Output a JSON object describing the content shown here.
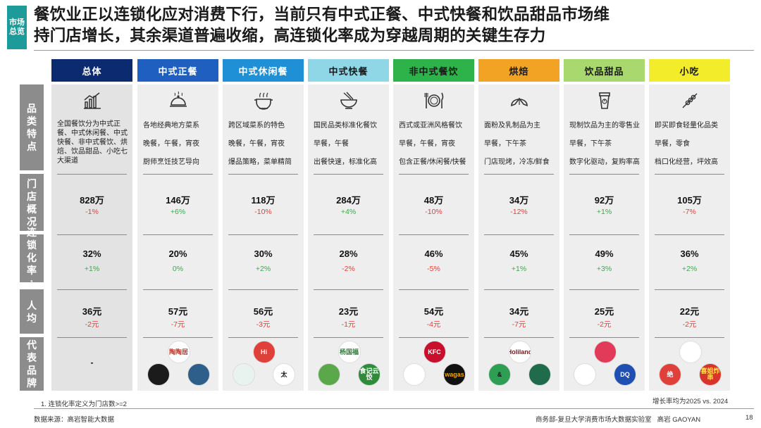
{
  "section_tag": [
    "市场",
    "总览"
  ],
  "title_lines": [
    "餐饮业正以连锁化应对消费下行，当前只有中式正餐、中式快餐和饮品甜品市场维",
    "持门店增长，其余渠道普遍收缩，高连锁化率成为穿越周期的关键生存力"
  ],
  "row_labels": [
    "品类特点",
    "门店概况",
    "连锁化率",
    "人均",
    "代表品牌"
  ],
  "row_label_sup": "1",
  "columns": [
    {
      "name": "总体",
      "head_color": "#0b2a6f",
      "head_text": "#ffffff",
      "icon": "bar-chart-icon",
      "features": [
        "全国餐饮分为中式正餐、中式休闲餐、中式快餐、非中式餐饮、烘焙、饮品甜品、小吃七大渠道"
      ],
      "stores": "828万",
      "stores_chg": "-1%",
      "chain": "32%",
      "chain_chg": "+1%",
      "avg": "36元",
      "avg_chg": "-2元",
      "brands": [],
      "brand_placeholder": "-"
    },
    {
      "name": "中式正餐",
      "head_color": "#1f5fbf",
      "head_text": "#ffffff",
      "icon": "cloche-icon",
      "features": [
        "各地经典地方菜系",
        "晚餐，午餐，宵夜",
        "厨师烹饪技艺导向"
      ],
      "stores": "146万",
      "stores_chg": "+6%",
      "chain": "20%",
      "chain_chg": "0%",
      "avg": "57元",
      "avg_chg": "-7元",
      "brands": [
        {
          "label": "陶陶居",
          "color": "#ffffff",
          "text": "#c0392b"
        },
        {
          "label": "",
          "color": "#1b1b1b",
          "text": "#ffffff"
        },
        {
          "label": "",
          "color": "#2e5f8a",
          "text": "#ffffff"
        }
      ]
    },
    {
      "name": "中式休闲餐",
      "head_color": "#1f8fd6",
      "head_text": "#ffffff",
      "icon": "hotpot-icon",
      "features": [
        "跨区域菜系的特色",
        "晚餐，午餐，宵夜",
        "爆品策略，菜单精简"
      ],
      "stores": "118万",
      "stores_chg": "-10%",
      "chain": "30%",
      "chain_chg": "+2%",
      "avg": "56元",
      "avg_chg": "-3元",
      "brands": [
        {
          "label": "Hi",
          "color": "#e0403a",
          "text": "#ffffff"
        },
        {
          "label": "",
          "color": "#e8f3f0",
          "text": "#2b9c8a"
        },
        {
          "label": "太",
          "color": "#ffffff",
          "text": "#111111"
        }
      ]
    },
    {
      "name": "中式快餐",
      "head_color": "#8fd6e6",
      "head_text": "#1a1a1a",
      "icon": "noodle-bowl-icon",
      "features": [
        "国民品类标准化餐饮",
        "早餐，午餐",
        "出餐快速，标准化高"
      ],
      "stores": "284万",
      "stores_chg": "+4%",
      "chain": "28%",
      "chain_chg": "-2%",
      "avg": "23元",
      "avg_chg": "-1元",
      "brands": [
        {
          "label": "杨国福",
          "color": "#ffffff",
          "text": "#2f7d3a"
        },
        {
          "label": "",
          "color": "#5aa84a",
          "text": "#ffffff"
        },
        {
          "label": "食记云饺",
          "color": "#2f8a3a",
          "text": "#ffffff"
        }
      ]
    },
    {
      "name": "非中式餐饮",
      "head_color": "#2db34a",
      "head_text": "#1a1a1a",
      "icon": "fork-knife-plate-icon",
      "features": [
        "西式或亚洲风格餐饮",
        "早餐，午餐，宵夜",
        "包含正餐/休闲餐/快餐"
      ],
      "stores": "48万",
      "stores_chg": "-10%",
      "chain": "46%",
      "chain_chg": "-5%",
      "avg": "54元",
      "avg_chg": "-4元",
      "brands": [
        {
          "label": "KFC",
          "color": "#c8102e",
          "text": "#ffffff"
        },
        {
          "label": "",
          "color": "#ffffff",
          "text": "#c8102e"
        },
        {
          "label": "wagas",
          "color": "#111111",
          "text": "#f2a900"
        }
      ]
    },
    {
      "name": "烘焙",
      "head_color": "#f2a324",
      "head_text": "#1a1a1a",
      "icon": "croissant-icon",
      "features": [
        "面粉及乳制品为主",
        "早餐，下午茶",
        "门店现烤，冷冻/鲜食"
      ],
      "stores": "34万",
      "stores_chg": "-12%",
      "chain": "45%",
      "chain_chg": "+1%",
      "avg": "34元",
      "avg_chg": "-7元",
      "brands": [
        {
          "label": "Holiland",
          "color": "#ffffff",
          "text": "#6b1e1e"
        },
        {
          "label": "&",
          "color": "#2e9e55",
          "text": "#111111"
        },
        {
          "label": "",
          "color": "#1f6b4a",
          "text": "#ffffff"
        }
      ]
    },
    {
      "name": "饮品甜品",
      "head_color": "#a9d86e",
      "head_text": "#1a1a1a",
      "icon": "drink-cup-icon",
      "features": [
        "现制饮品为主的零售业",
        "早餐，下午茶",
        "数字化驱动，复购率高"
      ],
      "stores": "92万",
      "stores_chg": "+1%",
      "chain": "49%",
      "chain_chg": "+3%",
      "avg": "25元",
      "avg_chg": "-2元",
      "brands": [
        {
          "label": "",
          "color": "#e23b5a",
          "text": "#ffffff"
        },
        {
          "label": "",
          "color": "#ffffff",
          "text": "#1b3a8a"
        },
        {
          "label": "DQ",
          "color": "#1f4fb0",
          "text": "#ffffff"
        }
      ]
    },
    {
      "name": "小吃",
      "head_color": "#f2ec2a",
      "head_text": "#1a1a1a",
      "icon": "skewer-icon",
      "features": [
        "即买即食轻量化品类",
        "早餐，零食",
        "档口化经营，坪效高"
      ],
      "stores": "105万",
      "stores_chg": "-7%",
      "chain": "36%",
      "chain_chg": "+2%",
      "avg": "22元",
      "avg_chg": "-2元",
      "brands": [
        {
          "label": "",
          "color": "#ffffff",
          "text": "#c0392b"
        },
        {
          "label": "绝",
          "color": "#e0403a",
          "text": "#ffffff"
        },
        {
          "label": "喜姐炸串",
          "color": "#d9342b",
          "text": "#ffe14a"
        }
      ]
    }
  ],
  "growth_note": "增长率均为2025 vs. 2024",
  "footnote": "1. 连锁化率定义为门店数>=2",
  "source": "数据来源：高岩智能大数据",
  "credit": "商务部-复旦大学消费市场大数据实验室   高岩 GAOYAN",
  "page_number": "18"
}
